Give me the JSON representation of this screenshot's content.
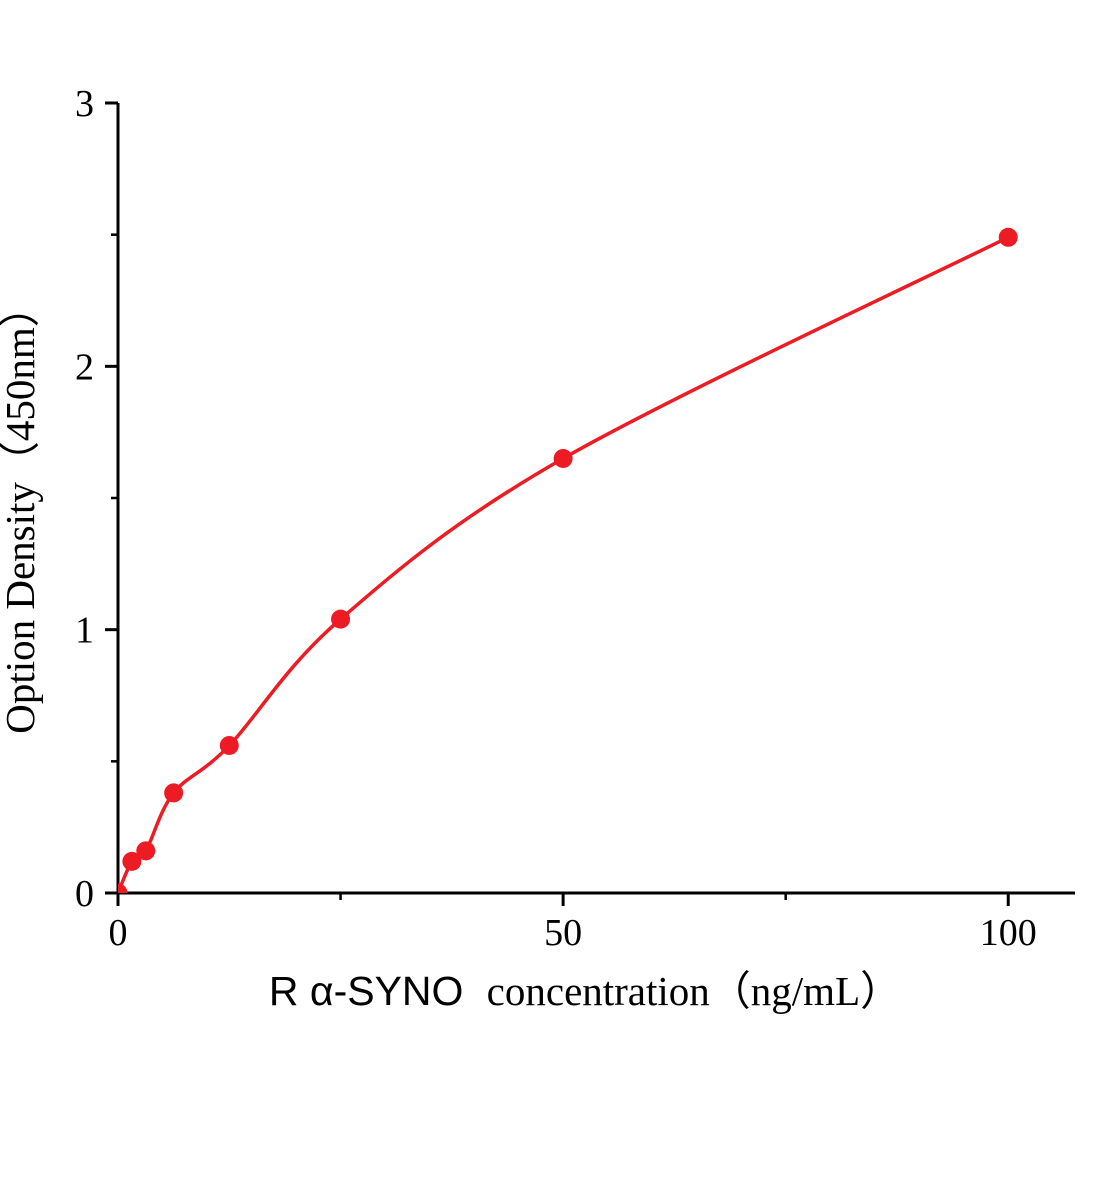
{
  "chart_data": {
    "type": "scatter",
    "title": "",
    "xlabel_prefix": "R α-SYNO",
    "xlabel_suffix": "concentration（ng/mL）",
    "ylabel": "Option Density（450nm）",
    "x": [
      0,
      1.56,
      3.12,
      6.25,
      12.5,
      25,
      50,
      100
    ],
    "y": [
      0,
      0.12,
      0.16,
      0.38,
      0.56,
      1.04,
      1.65,
      2.49
    ],
    "xlim": [
      0,
      107.5
    ],
    "ylim": [
      0,
      3
    ],
    "x_major_ticks": [
      0,
      50,
      100
    ],
    "x_tick_labels": [
      "0",
      "50",
      "100"
    ],
    "x_minor_ticks": [
      25,
      75
    ],
    "y_major_ticks": [
      0,
      1,
      2,
      3
    ],
    "y_tick_labels": [
      "0",
      "1",
      "2",
      "3"
    ],
    "y_minor_ticks": [
      0.5,
      1.5,
      2.5
    ],
    "line_color": "#ed1c24",
    "marker_color": "#ed1c24",
    "axis_color": "#000000",
    "grid": false,
    "legend": null,
    "fit": "smooth curve through points"
  }
}
